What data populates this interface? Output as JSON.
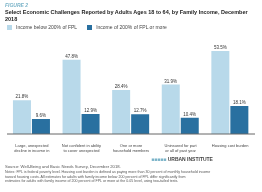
{
  "chart_data": {
    "type": "bar",
    "title": "Select Economic Challenges Reported by Adults Ages 18 to 64, by Family Income, December 2018",
    "annotations": [
      "FIGURE 2",
      "■■■■■",
      "URBAN INSTITUTE",
      "Source: Well-Being and Basic Needs Survey, December 2018.",
      "Notes: FPL is federal poverty level. Housing cost burden is defined as paying more than 30 percent of monthly household income\ntoward housing costs. All estimates for adults with family income below 200 percent of FPL differ significantly from\nestimates for adults with family income of 200 percent of FPL or more at the 0.05 level, using two-tailed tests."
    ],
    "categories": [
      "Large, unexpected\ndecline in income in\npast year",
      "Not confident in ability\nto cover unexpected\n$400 expense",
      "One or more\nhousehold members\nhave a disability",
      "Uninsured for part\nor all of past year",
      "Housing cost burden"
    ],
    "series": [
      {
        "name": "Income below 200% of FPL",
        "color": "#b8d9ea",
        "values": [
          21.8,
          47.8,
          28.4,
          31.9,
          53.5
        ],
        "value_labels": [
          "21.8%",
          "47.8%",
          "28.4%",
          "31.9%",
          "53.5%"
        ]
      },
      {
        "name": "Income of 200% of FPL or more",
        "color": "#2970a0",
        "values": [
          9.6,
          12.9,
          12.7,
          10.4,
          18.1
        ],
        "value_labels": [
          "9.6%",
          "12.9%",
          "12.7%",
          "10.4%",
          "18.1%"
        ]
      }
    ],
    "ylim": [
      0,
      65
    ],
    "data_labels": true,
    "legend": "upper left",
    "grid": false,
    "tick_labels": "x"
  }
}
